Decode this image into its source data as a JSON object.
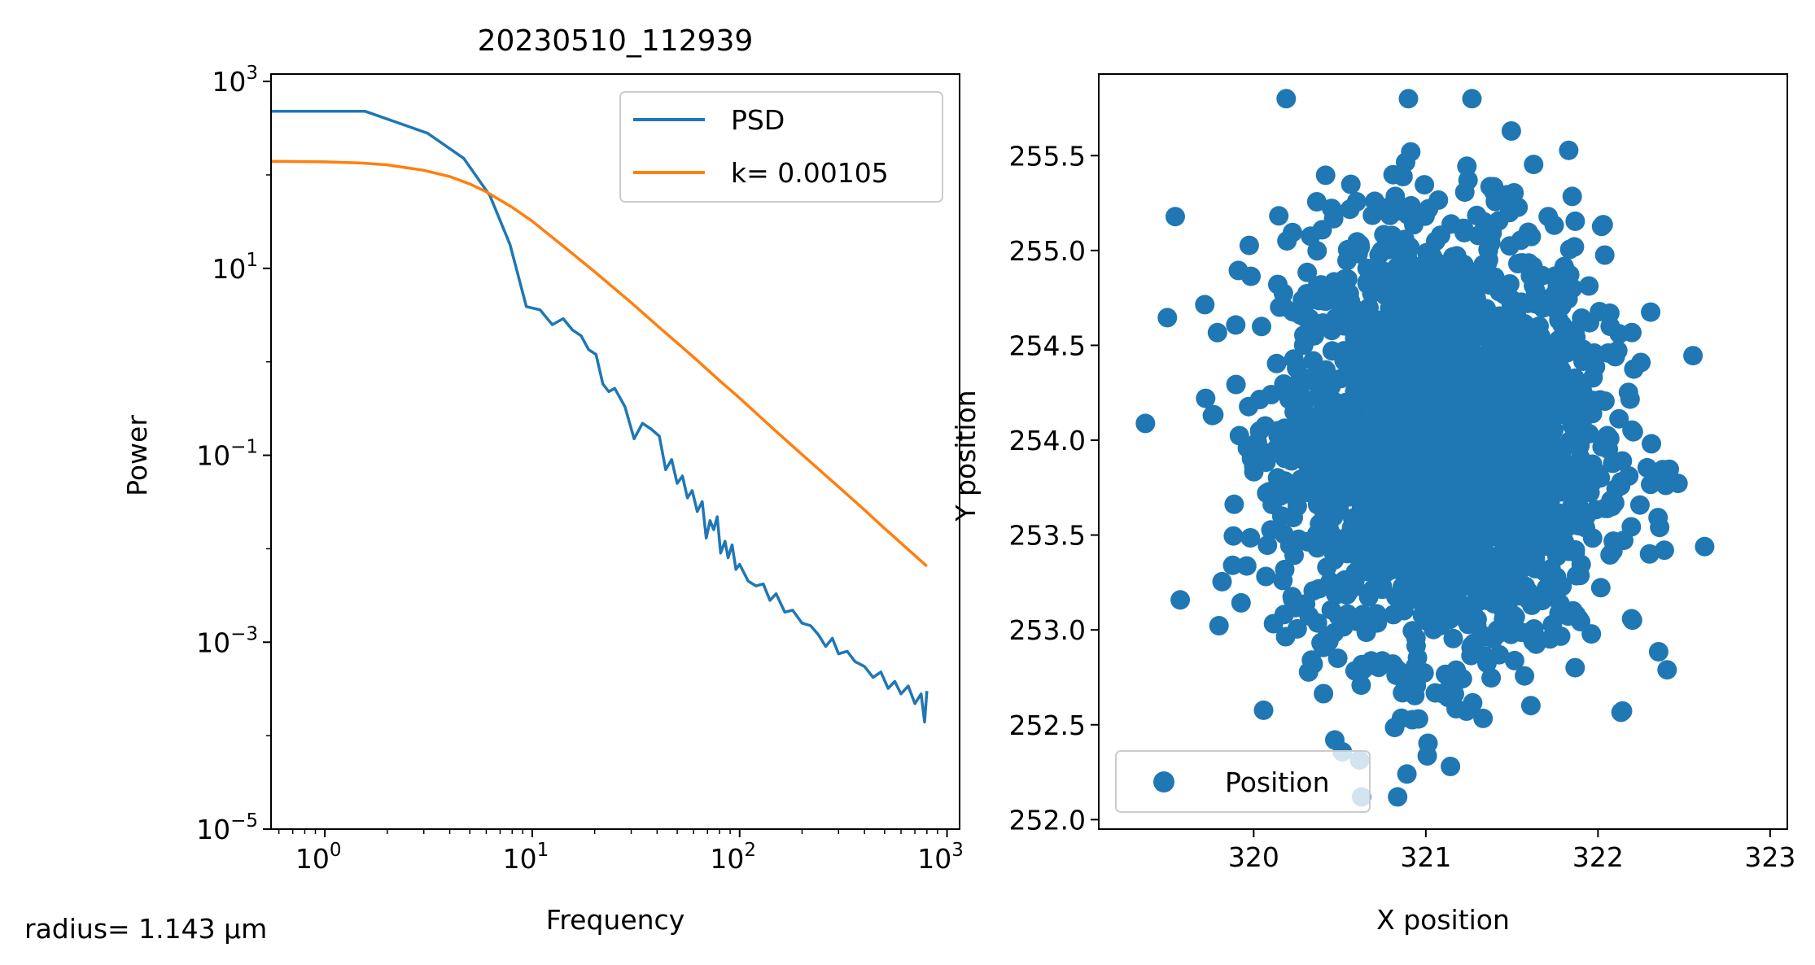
{
  "colors": {
    "psd": "#1f77b4",
    "fit": "#ff7f0e",
    "position": "#1f77b4"
  },
  "figure_text": {
    "radius_label": "radius= 1.143 µm"
  },
  "chart_data": [
    {
      "type": "line",
      "title": "20230510_112939",
      "xlabel": "Frequency",
      "ylabel": "Power",
      "xscale": "log",
      "yscale": "log",
      "xlim": [
        0.55,
        1150
      ],
      "ylim": [
        1e-05,
        1200
      ],
      "xticks": [
        {
          "base": "10",
          "exp": "0"
        },
        {
          "base": "10",
          "exp": "1"
        },
        {
          "base": "10",
          "exp": "2"
        },
        {
          "base": "10",
          "exp": "3"
        }
      ],
      "yticks": [
        {
          "base": "10",
          "exp": "−5"
        },
        {
          "base": "10",
          "exp": "−3"
        },
        {
          "base": "10",
          "exp": "−1"
        },
        {
          "base": "10",
          "exp": "1"
        },
        {
          "base": "10",
          "exp": "3"
        }
      ],
      "legend_position": "upper right",
      "grid": false,
      "series": [
        {
          "name": "PSD",
          "x": [
            0.55,
            1.56,
            3.12,
            4.68,
            6.25,
            7.81,
            9.37,
            10.9,
            12.5,
            14.1,
            15.6,
            17.2,
            18.7,
            20.3,
            21.9,
            23.4,
            25,
            28,
            31,
            34,
            37.5,
            41,
            44,
            47,
            50,
            53,
            56,
            59,
            62.5,
            66,
            69,
            72,
            75,
            78,
            81,
            85,
            88,
            92,
            96,
            100,
            110,
            120,
            130,
            140,
            150,
            165,
            180,
            200,
            220,
            240,
            260,
            280,
            300,
            330,
            360,
            400,
            440,
            480,
            520,
            560,
            600,
            650,
            700,
            750,
            780,
            800
          ],
          "y": [
            480,
            480,
            280,
            150,
            60,
            18,
            3.9,
            3.6,
            2.5,
            2.9,
            2.2,
            1.9,
            1.35,
            1.2,
            0.58,
            0.48,
            0.52,
            0.33,
            0.15,
            0.22,
            0.19,
            0.16,
            0.07,
            0.09,
            0.05,
            0.06,
            0.035,
            0.042,
            0.025,
            0.032,
            0.013,
            0.02,
            0.016,
            0.022,
            0.009,
            0.012,
            0.008,
            0.011,
            0.006,
            0.0068,
            0.0045,
            0.004,
            0.0042,
            0.0028,
            0.0033,
            0.0021,
            0.0022,
            0.0016,
            0.0015,
            0.0012,
            0.0009,
            0.0011,
            0.00075,
            0.0008,
            0.00062,
            0.00055,
            0.00042,
            0.00048,
            0.00032,
            0.00038,
            0.00028,
            0.00034,
            0.00022,
            0.00028,
            0.00014,
            0.0003
          ]
        },
        {
          "name": "k= 0.00105",
          "x": [
            0.55,
            1,
            1.5,
            2,
            3,
            4,
            5,
            6,
            8,
            10,
            15,
            20,
            30,
            40,
            60,
            80,
            100,
            150,
            200,
            300,
            400,
            500,
            600,
            800
          ],
          "y": [
            140,
            138,
            134,
            128,
            112,
            96,
            80,
            66,
            45,
            32,
            15.5,
            9.2,
            4.3,
            2.45,
            1.12,
            0.63,
            0.41,
            0.18,
            0.102,
            0.046,
            0.026,
            0.0165,
            0.0115,
            0.0065
          ]
        }
      ]
    },
    {
      "type": "scatter",
      "title": "",
      "xlabel": "X position",
      "ylabel": "Y position",
      "xlim": [
        319.1,
        323.1
      ],
      "ylim": [
        251.95,
        255.93
      ],
      "xticks": [
        "320",
        "321",
        "322",
        "323"
      ],
      "yticks": [
        "252.0",
        "252.5",
        "253.0",
        "253.5",
        "254.0",
        "254.5",
        "255.0",
        "255.5"
      ],
      "legend_position": "lower left",
      "grid": false,
      "series": [
        {
          "name": "Position",
          "n_points": 2500,
          "center": [
            321.1,
            254.0
          ],
          "std": [
            0.46,
            0.56
          ],
          "x_range": [
            319.25,
            322.98
          ],
          "y_range": [
            252.12,
            255.8
          ]
        }
      ]
    }
  ]
}
